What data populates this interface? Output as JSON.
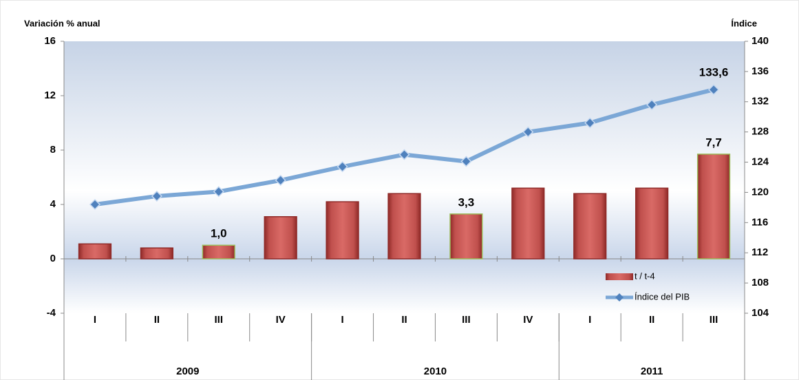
{
  "chart_data": {
    "type": "bar_line",
    "y_label": "Variación % anual",
    "y2_label": "Índice",
    "categories": [
      "I",
      "II",
      "III",
      "IV",
      "I",
      "II",
      "III",
      "IV",
      "I",
      "II",
      "III"
    ],
    "category_groups": [
      {
        "label": "2009",
        "count": 4
      },
      {
        "label": "2010",
        "count": 4
      },
      {
        "label": "2011",
        "count": 3
      }
    ],
    "series": [
      {
        "name": "t / t-4",
        "kind": "bar",
        "color": "#c0504d",
        "values": [
          1.1,
          0.8,
          1.0,
          3.1,
          4.2,
          4.8,
          3.3,
          5.2,
          4.8,
          5.2,
          7.7
        ],
        "value_labels": [
          null,
          null,
          "1,0",
          null,
          null,
          null,
          "3,3",
          null,
          null,
          null,
          "7,7"
        ]
      },
      {
        "name": "Índice del PIB",
        "kind": "line",
        "axis": "y2",
        "color": "#7ba7d6",
        "values": [
          118.4,
          119.5,
          120.1,
          121.6,
          123.4,
          125.0,
          124.1,
          128.0,
          129.2,
          131.6,
          133.6
        ],
        "value_labels": [
          null,
          null,
          null,
          null,
          null,
          null,
          null,
          null,
          null,
          null,
          "133,6"
        ]
      }
    ],
    "ylim": [
      -4,
      16
    ],
    "yticks": [
      -4,
      0,
      4,
      8,
      12,
      16
    ],
    "y2lim": [
      104,
      140
    ],
    "y2ticks": [
      104,
      108,
      112,
      116,
      120,
      124,
      128,
      132,
      136,
      140
    ],
    "legend": "lower right"
  }
}
